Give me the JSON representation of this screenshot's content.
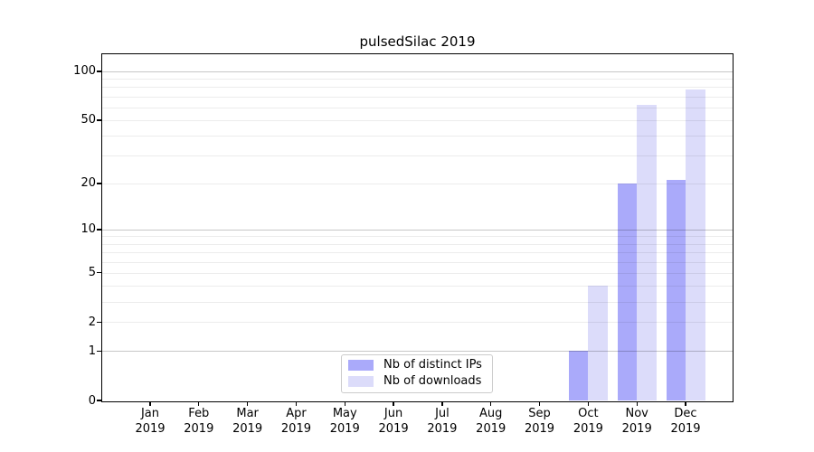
{
  "figure": {
    "title": "pulsedSilac 2019"
  },
  "chart_data": {
    "type": "bar",
    "title": "pulsedSilac 2019",
    "xlabel": "",
    "ylabel": "",
    "categories": [
      "Jan 2019",
      "Feb 2019",
      "Mar 2019",
      "Apr 2019",
      "May 2019",
      "Jun 2019",
      "Jul 2019",
      "Aug 2019",
      "Sep 2019",
      "Oct 2019",
      "Nov 2019",
      "Dec 2019"
    ],
    "x_tick_line1": [
      "Jan",
      "Feb",
      "Mar",
      "Apr",
      "May",
      "Jun",
      "Jul",
      "Aug",
      "Sep",
      "Oct",
      "Nov",
      "Dec"
    ],
    "x_tick_line2": "2019",
    "series": [
      {
        "name": "Nb of distinct IPs",
        "color": "#aaaafa",
        "values": [
          0,
          0,
          0,
          0,
          0,
          0,
          0,
          0,
          0,
          1,
          20,
          21
        ]
      },
      {
        "name": "Nb of downloads",
        "color": "#dcdcfa",
        "values": [
          0,
          0,
          0,
          0,
          0,
          0,
          0,
          0,
          0,
          4,
          62,
          77
        ]
      }
    ],
    "yscale": "log1p-symlog",
    "ylim": [
      0,
      130
    ],
    "ytick_values": [
      0,
      1,
      2,
      5,
      10,
      20,
      50,
      100
    ],
    "ytick_labels": [
      "0",
      "1",
      "2",
      "5",
      "10",
      "20",
      "50",
      "100"
    ],
    "major_gridline_values": [
      1,
      10,
      100
    ],
    "minor_gridline_values": [
      2,
      3,
      4,
      5,
      6,
      7,
      8,
      9,
      20,
      30,
      40,
      50,
      60,
      70,
      80,
      90
    ],
    "grid": true,
    "legend_position": "lower center"
  },
  "colors": {
    "distinct_ips_bar": "#aaaafa",
    "downloads_bar": "#dcdcfa",
    "spine": "#000000",
    "legend_border": "#cccccc",
    "background": "#ffffff"
  }
}
